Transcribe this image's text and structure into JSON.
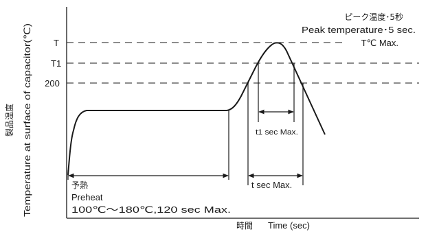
{
  "labels": {
    "y_axis_jp": "製品温度",
    "y_axis_en": "Temperature at surface of capacitor(℃)",
    "x_axis_jp": "時間",
    "x_axis_en": "Time (sec)",
    "tick_T": "T",
    "tick_T1": "T1",
    "tick_200": "200",
    "peak_jp": "ピーク温度･5秒",
    "peak_en": "Peak temperature･5 sec.",
    "tc_max": "T℃ Max.",
    "t1_sec_max": "t1 sec Max.",
    "t_sec_max": "t sec Max.",
    "preheat_jp": "予熱",
    "preheat_en": "Preheat",
    "preheat_cond": "100℃～180℃,120 sec Max."
  }
}
